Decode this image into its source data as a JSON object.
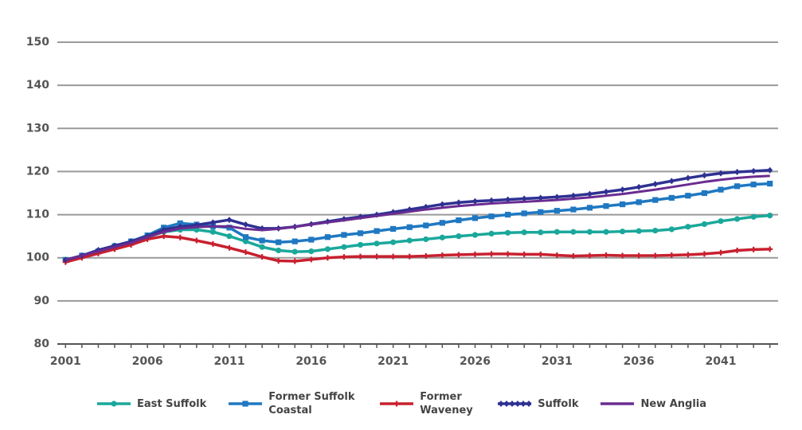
{
  "chart_data": {
    "type": "line",
    "categories": [
      "2001",
      null,
      null,
      null,
      null,
      "2006",
      null,
      null,
      null,
      null,
      "2011",
      null,
      null,
      null,
      null,
      "2016",
      null,
      null,
      null,
      null,
      "2021",
      null,
      null,
      null,
      null,
      "2026",
      null,
      null,
      null,
      null,
      "2031",
      null,
      null,
      null,
      null,
      "2036",
      null,
      null,
      null,
      null,
      "2041",
      null,
      null,
      null
    ],
    "ylim": [
      80,
      150
    ],
    "yticks": [
      80,
      90,
      100,
      110,
      120,
      130,
      140,
      150
    ],
    "grid": true,
    "series": [
      {
        "name": "East Suffolk",
        "color": "#1aa89b",
        "marker": "circle",
        "values": [
          99.5,
          100.5,
          101.5,
          102.5,
          103.5,
          104.8,
          106,
          106.5,
          106.5,
          106,
          105,
          103.8,
          102.5,
          101.7,
          101.4,
          101.5,
          102,
          102.5,
          103,
          103.3,
          103.6,
          104,
          104.3,
          104.7,
          105,
          105.3,
          105.6,
          105.8,
          105.9,
          105.9,
          106,
          106,
          106,
          106,
          106.1,
          106.2,
          106.3,
          106.6,
          107.2,
          107.8,
          108.5,
          109,
          109.5,
          109.8
        ]
      },
      {
        "name": "Former Suffolk Coastal",
        "color": "#1f78c1",
        "marker": "square",
        "values": [
          99.5,
          100.5,
          101.5,
          102.7,
          103.8,
          105.2,
          107,
          108,
          107.7,
          107.3,
          107,
          104.8,
          104,
          103.6,
          103.8,
          104.2,
          104.8,
          105.3,
          105.7,
          106.2,
          106.7,
          107.1,
          107.5,
          108.1,
          108.7,
          109.2,
          109.6,
          110,
          110.3,
          110.6,
          110.9,
          111.2,
          111.6,
          112,
          112.4,
          112.9,
          113.4,
          113.9,
          114.4,
          115,
          115.8,
          116.6,
          117,
          117.2
        ]
      },
      {
        "name": "Former Waveney",
        "color": "#c8202f",
        "marker": "plus",
        "values": [
          99,
          100,
          101,
          102,
          103,
          104.3,
          105,
          104.7,
          104,
          103.2,
          102.3,
          101.3,
          100.2,
          99.3,
          99.2,
          99.6,
          100,
          100.2,
          100.3,
          100.3,
          100.3,
          100.3,
          100.4,
          100.6,
          100.7,
          100.8,
          100.9,
          100.9,
          100.8,
          100.8,
          100.6,
          100.4,
          100.5,
          100.6,
          100.5,
          100.5,
          100.5,
          100.6,
          100.7,
          100.9,
          101.2,
          101.7,
          101.9,
          102
        ]
      },
      {
        "name": "Suffolk",
        "color": "#2e3192",
        "marker": "diamond",
        "values": [
          99.5,
          100.5,
          101.8,
          102.8,
          103.8,
          105,
          106.5,
          107.2,
          107.6,
          108.2,
          108.8,
          107.7,
          106.8,
          106.8,
          107.2,
          107.8,
          108.4,
          109,
          109.5,
          110,
          110.6,
          111.2,
          111.8,
          112.4,
          112.8,
          113.1,
          113.3,
          113.5,
          113.7,
          113.9,
          114.1,
          114.4,
          114.8,
          115.3,
          115.8,
          116.4,
          117.1,
          117.8,
          118.5,
          119.1,
          119.6,
          119.9,
          120.1,
          120.3
        ]
      },
      {
        "name": "New Anglia",
        "color": "#6a2c91",
        "marker": "none",
        "values": [
          99.5,
          100.5,
          101.5,
          102.5,
          103.5,
          104.8,
          106,
          106.8,
          107.1,
          107.3,
          107.3,
          106.7,
          106.4,
          106.7,
          107.2,
          107.7,
          108.2,
          108.7,
          109.2,
          109.7,
          110.2,
          110.7,
          111.2,
          111.6,
          112,
          112.3,
          112.6,
          112.8,
          113,
          113.2,
          113.4,
          113.7,
          114,
          114.4,
          114.8,
          115.3,
          115.8,
          116.4,
          117,
          117.6,
          118.1,
          118.5,
          118.8,
          119
        ]
      }
    ]
  }
}
